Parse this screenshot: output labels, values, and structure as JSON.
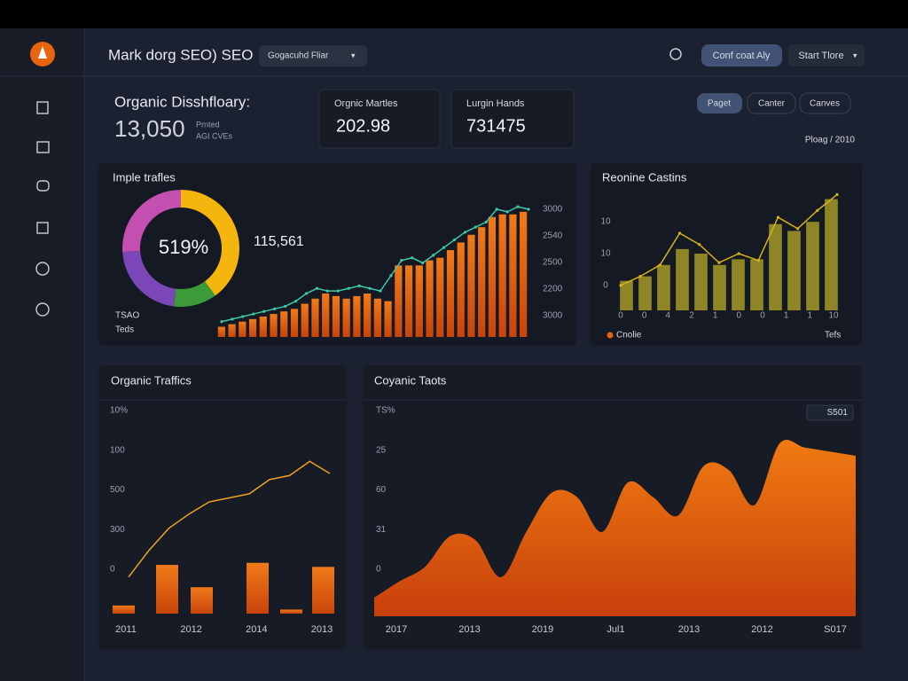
{
  "header": {
    "title": "Mark dorg SEO) SEO",
    "dropdown": "Gogacuhd Fliar",
    "buttons": [
      "Conf coat Aly",
      "Start Tlore"
    ]
  },
  "summary": {
    "title": "Organic Disshfloary:",
    "value": "13,050",
    "sub": [
      "Prnted",
      "AGI CVEs"
    ]
  },
  "stats": [
    {
      "label": "Orgnic Martles",
      "value": "202.98"
    },
    {
      "label": "Lurgin Hands",
      "value": "731475"
    }
  ],
  "filters": [
    "Paget",
    "Canter",
    "Canves"
  ],
  "period": "Ploag / 2010",
  "chart_data": [
    {
      "type": "donut",
      "title": "Imple trafles",
      "center_label": "519%",
      "side_label": "115,561",
      "notes": [
        "TSAO",
        "Teds"
      ],
      "values": [
        40,
        12,
        22,
        26
      ],
      "colors": [
        "#f5b50f",
        "#3c9a3a",
        "#7a46b8",
        "#c44fb0"
      ]
    },
    {
      "type": "bar",
      "color": "#e8650f",
      "ylim": [
        0,
        100
      ],
      "values": [
        8,
        10,
        12,
        14,
        16,
        18,
        20,
        22,
        26,
        30,
        34,
        32,
        30,
        32,
        34,
        30,
        28,
        56,
        56,
        56,
        60,
        62,
        68,
        74,
        80,
        86,
        94,
        96,
        96,
        98
      ],
      "line": {
        "color": "#3fc8a8",
        "values": [
          12,
          14,
          16,
          18,
          20,
          22,
          24,
          28,
          34,
          38,
          36,
          36,
          38,
          40,
          38,
          36,
          48,
          60,
          62,
          58,
          64,
          70,
          76,
          82,
          86,
          90,
          100,
          98,
          102,
          100
        ]
      },
      "axis_labels": [
        "3000",
        "2540",
        "2500",
        "2200",
        "3000"
      ]
    },
    {
      "type": "bar",
      "title": "Reonine Castins",
      "color": "#8d8526",
      "ylim": [
        0,
        100
      ],
      "values": [
        26,
        30,
        40,
        54,
        50,
        40,
        45,
        45,
        76,
        70,
        78,
        98
      ],
      "line": {
        "color": "#d9b21a",
        "values": [
          22,
          30,
          40,
          68,
          58,
          42,
          50,
          44,
          82,
          72,
          88,
          102
        ]
      },
      "axis_labels": [
        "10",
        "10",
        "0"
      ],
      "x_labels": [
        "0",
        "0",
        "4",
        "2",
        "1",
        "0",
        "0",
        "1",
        "1",
        "10"
      ],
      "legend": [
        "Cnolie",
        "Tefs"
      ],
      "legend_color": "#e8650f"
    },
    {
      "type": "bar",
      "title": "Organic Traffics",
      "color": "#e8650f",
      "ylim": [
        0,
        100
      ],
      "values": [
        4,
        24,
        13,
        25,
        2,
        23
      ],
      "line": {
        "color": "#f0a020",
        "values": [
          18,
          31,
          42,
          49,
          55,
          57,
          59,
          66,
          68,
          75,
          69
        ]
      },
      "axis_labels": [
        "10%",
        "100",
        "500",
        "300",
        "0"
      ],
      "x_labels": [
        "2011",
        "2012",
        "2014",
        "2013"
      ]
    },
    {
      "type": "area",
      "title": "Coyanic Taots",
      "badge": "S501",
      "color": "#e8650f",
      "ylim": [
        0,
        100
      ],
      "values": [
        9,
        17,
        24,
        39,
        37,
        19,
        41,
        60,
        58,
        41,
        65,
        58,
        49,
        73,
        71,
        54,
        84,
        82,
        80,
        78
      ],
      "axis_labels": [
        "TS%",
        "25",
        "60",
        "31",
        "0"
      ],
      "x_labels": [
        "2017",
        "2013",
        "2019",
        "Jul1",
        "2013",
        "2012",
        "S017"
      ]
    }
  ]
}
